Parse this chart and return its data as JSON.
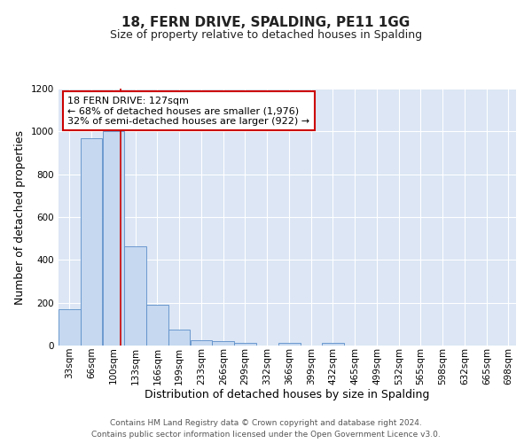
{
  "title_line1": "18, FERN DRIVE, SPALDING, PE11 1GG",
  "title_line2": "Size of property relative to detached houses in Spalding",
  "xlabel": "Distribution of detached houses by size in Spalding",
  "ylabel": "Number of detached properties",
  "bin_labels": [
    "33sqm",
    "66sqm",
    "100sqm",
    "133sqm",
    "166sqm",
    "199sqm",
    "233sqm",
    "266sqm",
    "299sqm",
    "332sqm",
    "366sqm",
    "399sqm",
    "432sqm",
    "465sqm",
    "499sqm",
    "532sqm",
    "565sqm",
    "598sqm",
    "632sqm",
    "665sqm",
    "698sqm"
  ],
  "bar_values": [
    170,
    970,
    1000,
    465,
    190,
    75,
    25,
    20,
    13,
    0,
    13,
    0,
    13,
    0,
    0,
    0,
    0,
    0,
    0,
    0,
    0
  ],
  "bar_color": "#c5d8f0",
  "bar_edge_color": "#5b8fc9",
  "background_color": "#dce6f5",
  "grid_color": "#ffffff",
  "annotation_text": "18 FERN DRIVE: 127sqm\n← 68% of detached houses are smaller (1,976)\n32% of semi-detached houses are larger (922) →",
  "annotation_box_color": "#ffffff",
  "annotation_box_edge_color": "#cc0000",
  "red_line_x": 127,
  "bin_width": 33,
  "ylim": [
    0,
    1200
  ],
  "yticks": [
    0,
    200,
    400,
    600,
    800,
    1000,
    1200
  ],
  "footer_text": "Contains HM Land Registry data © Crown copyright and database right 2024.\nContains public sector information licensed under the Open Government Licence v3.0.",
  "title_fontsize": 11,
  "subtitle_fontsize": 9,
  "axis_label_fontsize": 9,
  "tick_fontsize": 7.5,
  "annotation_fontsize": 8,
  "footer_fontsize": 6.5
}
